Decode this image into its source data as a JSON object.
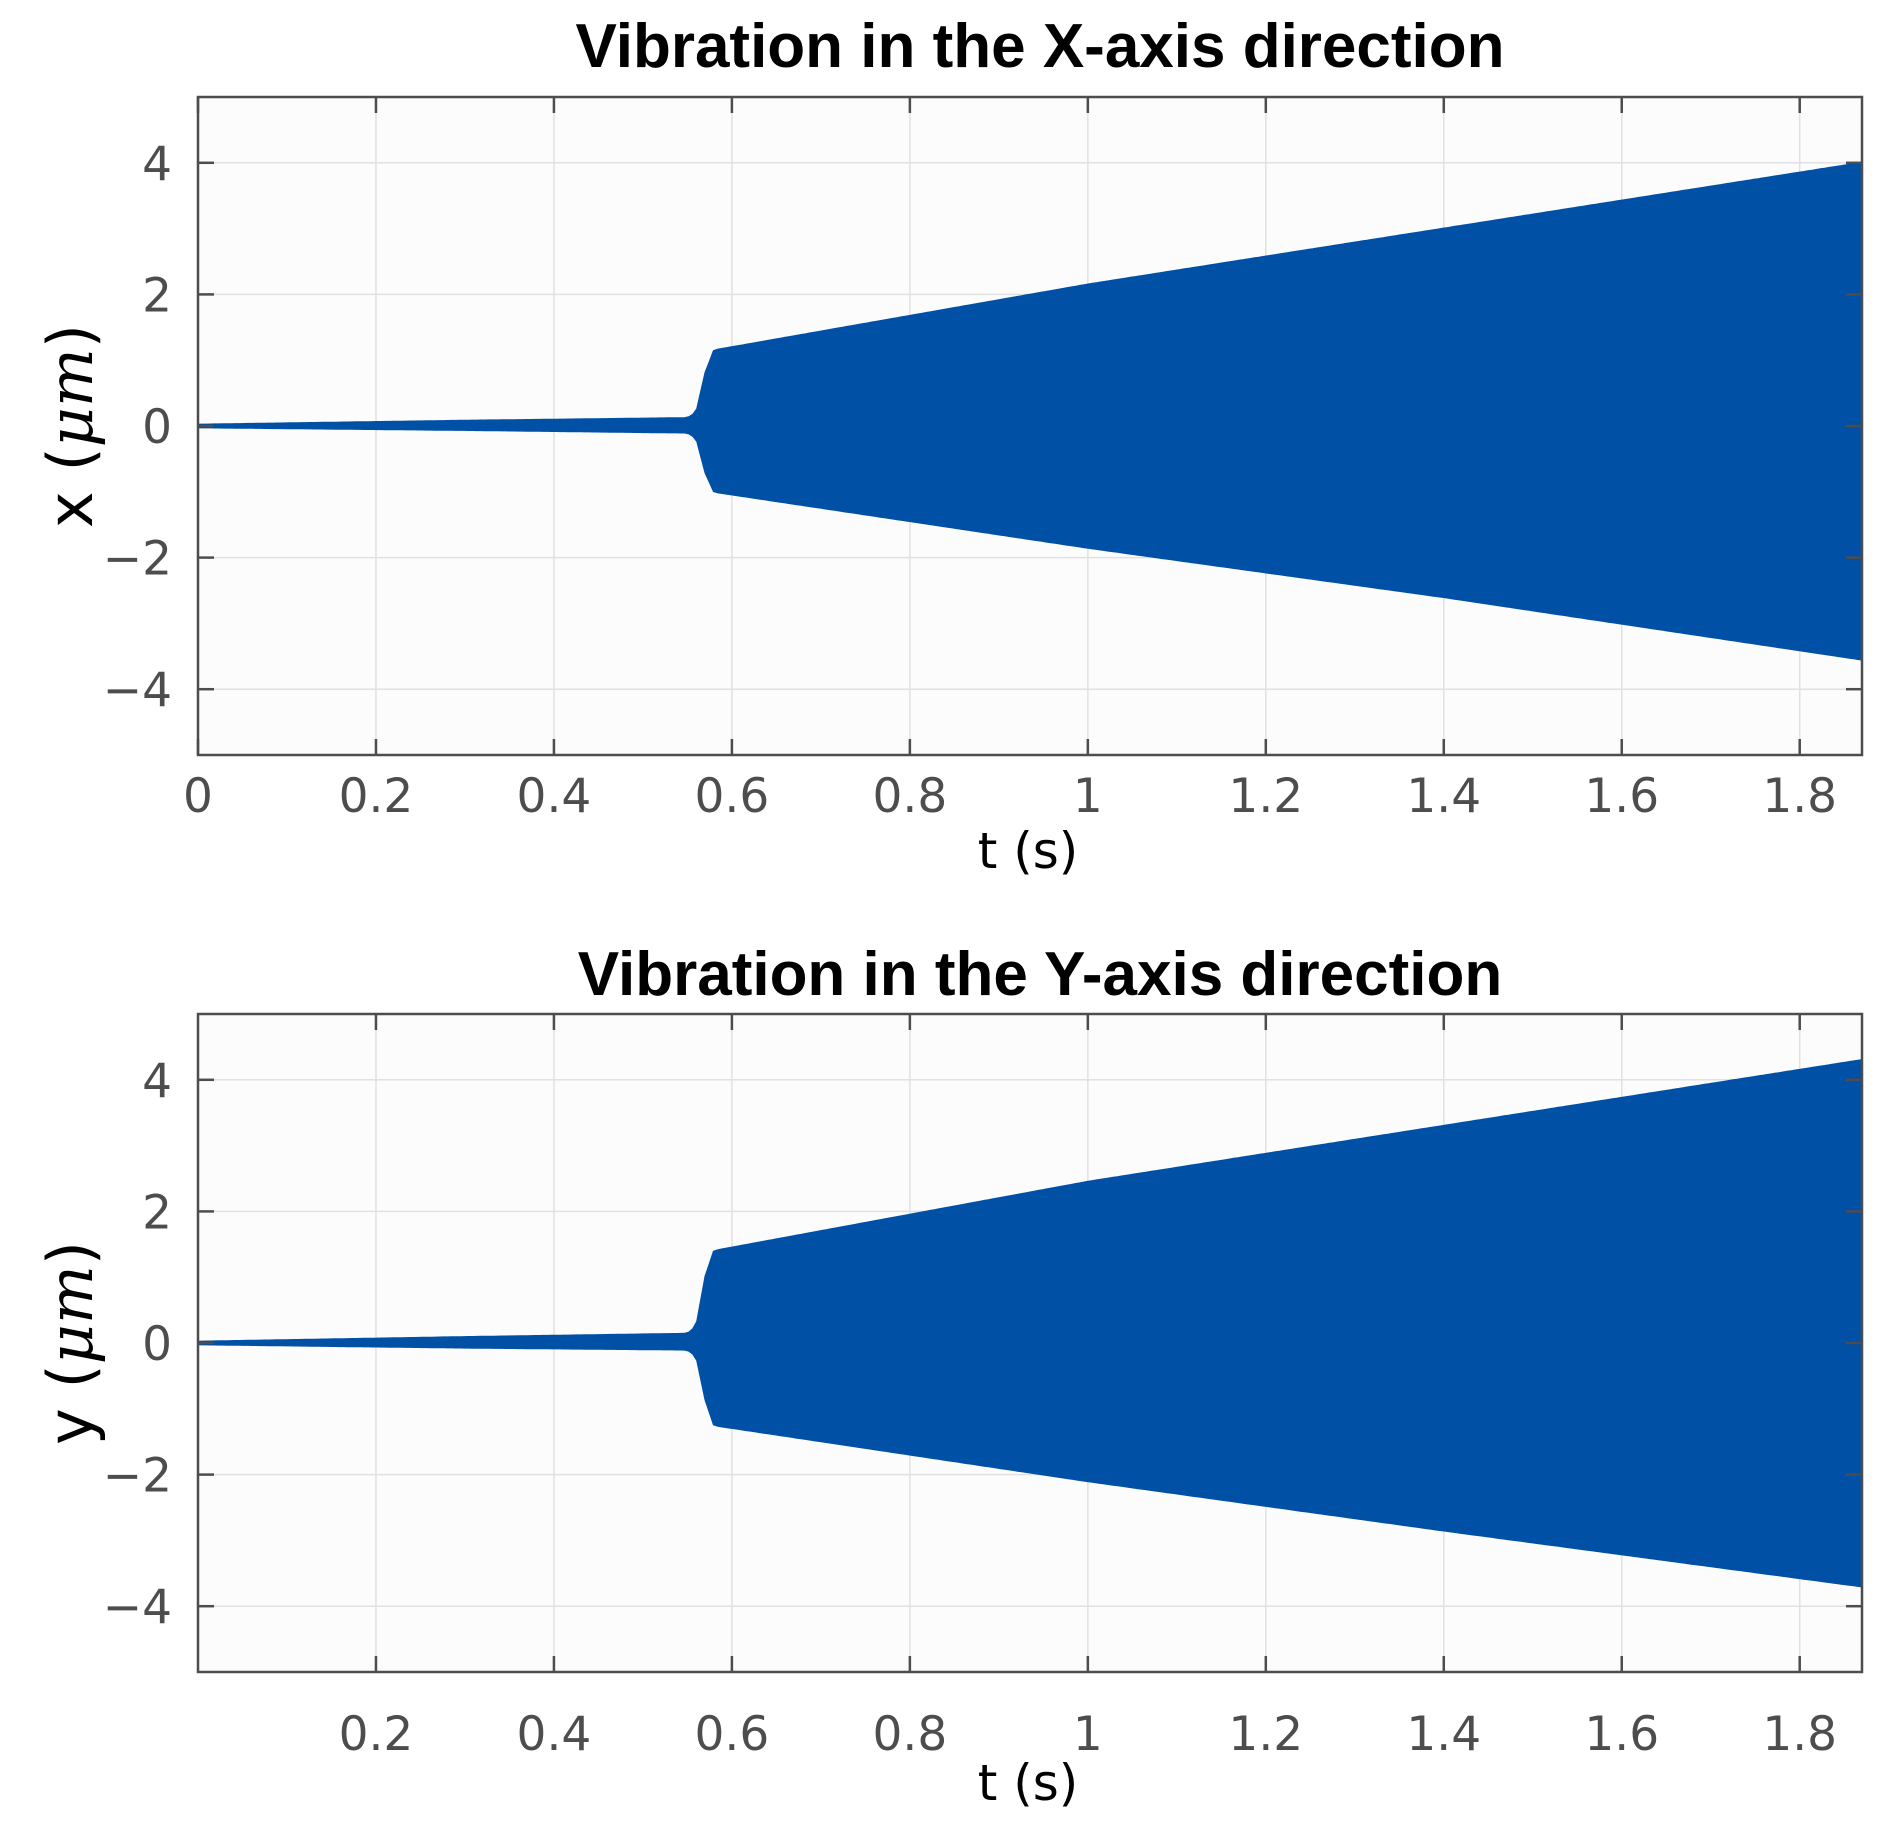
{
  "chart_data": [
    {
      "type": "area",
      "title": "Vibration in the X-axis direction",
      "xlabel": "t (s)",
      "ylabel_var": "x",
      "ylabel_unit": "μm",
      "xlim": [
        0,
        1.87
      ],
      "ylim": [
        -5,
        5
      ],
      "xticks": [
        0,
        0.2,
        0.4,
        0.6,
        0.8,
        1,
        1.2,
        1.4,
        1.6,
        1.8
      ],
      "xtick_labels": [
        "0",
        "0.2",
        "0.4",
        "0.6",
        "0.8",
        "1",
        "1.2",
        "1.4",
        "1.6",
        "1.8"
      ],
      "yticks": [
        4,
        2,
        0,
        -2,
        -4
      ],
      "ytick_labels": [
        "4",
        "2",
        "0",
        "−2",
        "−4"
      ],
      "grid": true,
      "color": "#0050a5",
      "series": [
        {
          "name": "x",
          "envelope_t": [
            0,
            0.3,
            0.55,
            0.56,
            0.57,
            0.58,
            1.0,
            1.4,
            1.87
          ],
          "upper": [
            0.02,
            0.08,
            0.12,
            0.2,
            0.8,
            1.15,
            2.15,
            3.0,
            4.0
          ],
          "lower": [
            -0.02,
            -0.06,
            -0.1,
            -0.18,
            -0.7,
            -1.0,
            -1.85,
            -2.6,
            -3.55
          ]
        }
      ]
    },
    {
      "type": "area",
      "title": "Vibration in the Y-axis direction",
      "xlabel": "t (s)",
      "ylabel_var": "y",
      "ylabel_unit": "μm",
      "xlim": [
        0,
        1.87
      ],
      "ylim": [
        -5,
        5
      ],
      "xticks": [
        0.2,
        0.4,
        0.6,
        0.8,
        1,
        1.2,
        1.4,
        1.6,
        1.8
      ],
      "xtick_labels": [
        "0.2",
        "0.4",
        "0.6",
        "0.8",
        "1",
        "1.2",
        "1.4",
        "1.6",
        "1.8"
      ],
      "yticks": [
        4,
        2,
        0,
        -2,
        -4
      ],
      "ytick_labels": [
        "4",
        "2",
        "0",
        "−2",
        "−4"
      ],
      "grid": true,
      "color": "#0050a5",
      "series": [
        {
          "name": "y",
          "envelope_t": [
            0,
            0.3,
            0.55,
            0.56,
            0.57,
            0.58,
            1.0,
            1.4,
            1.87
          ],
          "upper": [
            0.02,
            0.09,
            0.14,
            0.25,
            1.0,
            1.4,
            2.45,
            3.3,
            4.3
          ],
          "lower": [
            -0.02,
            -0.07,
            -0.1,
            -0.2,
            -0.85,
            -1.25,
            -2.1,
            -2.85,
            -3.7
          ]
        }
      ]
    }
  ]
}
